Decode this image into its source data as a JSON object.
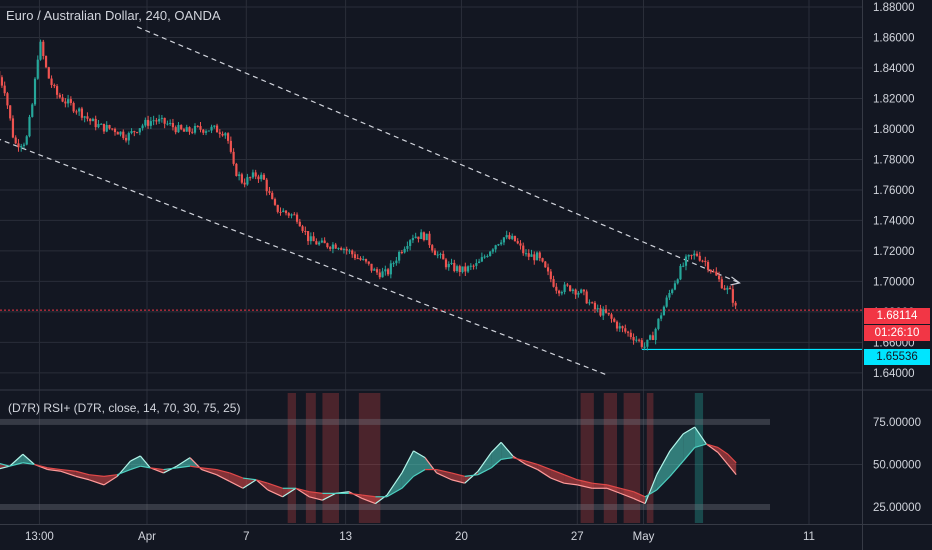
{
  "header": {
    "symbol_title": "Euro / Australian Dollar, 240, OANDA",
    "rsi_title": "(D7R) RSI+ (D7R, close, 14, 70, 30, 75, 25)"
  },
  "price_axis": {
    "labels": [
      "1.88000",
      "1.86000",
      "1.84000",
      "1.82000",
      "1.80000",
      "1.78000",
      "1.76000",
      "1.74000",
      "1.72000",
      "1.70000",
      "1.68000",
      "1.66000",
      "1.64000"
    ],
    "values": [
      1.88,
      1.86,
      1.84,
      1.82,
      1.8,
      1.78,
      1.76,
      1.74,
      1.72,
      1.7,
      1.68,
      1.66,
      1.64
    ]
  },
  "rsi_axis": {
    "labels": [
      "75.00000",
      "50.00000",
      "25.00000"
    ],
    "values": [
      75,
      50,
      25
    ]
  },
  "time_axis": {
    "labels": [
      "13:00",
      "Apr",
      "7",
      "13",
      "20",
      "27",
      "May",
      "11"
    ],
    "day_positions": [
      -6.5,
      0,
      6,
      12,
      19,
      26,
      30,
      40
    ]
  },
  "price_tags": {
    "last_price": "1.68114",
    "countdown": "01:26:10",
    "support": "1.65536",
    "last_color": "#f23645",
    "support_color": "#00e5ff"
  },
  "colors": {
    "background": "#131722",
    "up": "#26a69a",
    "down": "#ef5350",
    "rsi_bull": "#4dd0c1",
    "rsi_bear": "#e04848",
    "grid": "#2a2e39",
    "text": "#d1d4dc"
  },
  "chart_data": [
    {
      "type": "candlestick",
      "title": "Euro / Australian Dollar, 240, OANDA",
      "interval": "240",
      "ylim": [
        1.634,
        1.882
      ],
      "x_unit": "days since April 1",
      "xlim": [
        -9.1,
        42
      ],
      "path": [
        [
          -9.1,
          1.838
        ],
        [
          -8.6,
          1.826
        ],
        [
          -8,
          1.79
        ],
        [
          -7.3,
          1.792
        ],
        [
          -6.9,
          1.818
        ],
        [
          -6.5,
          1.858
        ],
        [
          -6.0,
          1.835
        ],
        [
          -5.5,
          1.823
        ],
        [
          -4.8,
          1.817
        ],
        [
          -4.1,
          1.812
        ],
        [
          -3.4,
          1.805
        ],
        [
          -2.7,
          1.801
        ],
        [
          -2.0,
          1.8
        ],
        [
          -1.2,
          1.795
        ],
        [
          -0.4,
          1.802
        ],
        [
          0.4,
          1.806
        ],
        [
          1.3,
          1.803
        ],
        [
          2.2,
          1.798
        ],
        [
          3.1,
          1.8
        ],
        [
          4.0,
          1.8
        ],
        [
          4.8,
          1.798
        ],
        [
          5.2,
          1.775
        ],
        [
          5.8,
          1.765
        ],
        [
          6.6,
          1.77
        ],
        [
          7.0,
          1.768
        ],
        [
          7.7,
          1.748
        ],
        [
          8.4,
          1.745
        ],
        [
          9.1,
          1.742
        ],
        [
          9.8,
          1.727
        ],
        [
          10.6,
          1.724
        ],
        [
          11.6,
          1.724
        ],
        [
          12.4,
          1.718
        ],
        [
          13.2,
          1.712
        ],
        [
          13.8,
          1.706
        ],
        [
          14.5,
          1.705
        ],
        [
          15.3,
          1.72
        ],
        [
          16.0,
          1.73
        ],
        [
          16.8,
          1.73
        ],
        [
          17.5,
          1.718
        ],
        [
          18.2,
          1.71
        ],
        [
          19.1,
          1.707
        ],
        [
          20.0,
          1.711
        ],
        [
          20.8,
          1.722
        ],
        [
          21.5,
          1.729
        ],
        [
          22.2,
          1.727
        ],
        [
          22.9,
          1.717
        ],
        [
          23.6,
          1.716
        ],
        [
          24.2,
          1.705
        ],
        [
          24.8,
          1.695
        ],
        [
          25.6,
          1.696
        ],
        [
          26.3,
          1.692
        ],
        [
          27.0,
          1.682
        ],
        [
          27.8,
          1.678
        ],
        [
          28.6,
          1.669
        ],
        [
          29.5,
          1.663
        ],
        [
          30.1,
          1.657
        ],
        [
          30.6,
          1.665
        ],
        [
          31.1,
          1.68
        ],
        [
          31.6,
          1.693
        ],
        [
          32.1,
          1.705
        ],
        [
          32.6,
          1.714
        ],
        [
          33.2,
          1.718
        ],
        [
          33.8,
          1.712
        ],
        [
          34.4,
          1.703
        ],
        [
          34.9,
          1.696
        ],
        [
          35.3,
          1.692
        ],
        [
          35.6,
          1.681
        ]
      ],
      "channel_upper": {
        "x": [
          -0.6,
          35.8
        ],
        "y": [
          1.867,
          1.699
        ]
      },
      "channel_lower": {
        "x": [
          -9.1,
          27.7
        ],
        "y": [
          1.794,
          1.639
        ]
      },
      "horizontal_lines": [
        {
          "name": "last-price",
          "y": 1.68114,
          "style": "dotted",
          "color": "#f23645"
        },
        {
          "name": "support",
          "y": 1.65536,
          "x_start": 29.9,
          "color": "#00e5ff"
        }
      ]
    },
    {
      "type": "area",
      "title": "(D7R) RSI+ (D7R, close, 14, 70, 30, 75, 25)",
      "ylim": [
        15,
        92
      ],
      "levels": [
        75,
        50,
        25
      ],
      "series": [
        {
          "points": [
            [
              -9.1,
              47
            ],
            [
              -8.3,
              49
            ],
            [
              -7.5,
              56
            ],
            [
              -6.8,
              50
            ],
            [
              -6.0,
              47
            ],
            [
              -5.2,
              46
            ],
            [
              -4.3,
              43
            ],
            [
              -3.5,
              41
            ],
            [
              -2.6,
              38
            ],
            [
              -1.8,
              43
            ],
            [
              -1.0,
              52
            ],
            [
              -0.4,
              55
            ],
            [
              0.2,
              48
            ],
            [
              1.0,
              45
            ],
            [
              1.8,
              49
            ],
            [
              2.6,
              54
            ],
            [
              3.3,
              47
            ],
            [
              4.2,
              44
            ],
            [
              5.0,
              40
            ],
            [
              5.8,
              36
            ],
            [
              6.6,
              41
            ],
            [
              7.3,
              35
            ],
            [
              8.2,
              31
            ],
            [
              9.0,
              36
            ],
            [
              9.8,
              31
            ],
            [
              10.6,
              29
            ],
            [
              11.4,
              33
            ],
            [
              12.2,
              34
            ],
            [
              13.0,
              30
            ],
            [
              13.8,
              27
            ],
            [
              14.5,
              32
            ],
            [
              15.4,
              45
            ],
            [
              16.1,
              58
            ],
            [
              16.8,
              54
            ],
            [
              17.5,
              45
            ],
            [
              18.4,
              41
            ],
            [
              19.2,
              39
            ],
            [
              20.0,
              46
            ],
            [
              20.8,
              57
            ],
            [
              21.4,
              63
            ],
            [
              22.1,
              55
            ],
            [
              22.9,
              50
            ],
            [
              23.6,
              47
            ],
            [
              24.4,
              42
            ],
            [
              25.2,
              39
            ],
            [
              26.0,
              38
            ],
            [
              26.9,
              36
            ],
            [
              27.8,
              36
            ],
            [
              28.6,
              33
            ],
            [
              29.4,
              30
            ],
            [
              30.1,
              27
            ],
            [
              30.8,
              44
            ],
            [
              31.6,
              58
            ],
            [
              32.4,
              68
            ],
            [
              33.1,
              72
            ],
            [
              33.8,
              62
            ],
            [
              34.5,
              57
            ],
            [
              35.1,
              50
            ],
            [
              35.6,
              44
            ]
          ]
        },
        {
          "points": [
            [
              -9.1,
              51
            ],
            [
              -8.3,
              49
            ],
            [
              -7.5,
              51
            ],
            [
              -6.8,
              50
            ],
            [
              -6.0,
              48
            ],
            [
              -5.2,
              47
            ],
            [
              -4.3,
              46
            ],
            [
              -3.5,
              44
            ],
            [
              -2.6,
              43
            ],
            [
              -1.8,
              44
            ],
            [
              -1.0,
              47
            ],
            [
              -0.4,
              49
            ],
            [
              0.2,
              48
            ],
            [
              1.0,
              47
            ],
            [
              1.8,
              48
            ],
            [
              2.6,
              49
            ],
            [
              3.3,
              48
            ],
            [
              4.2,
              47
            ],
            [
              5.0,
              45
            ],
            [
              5.8,
              42
            ],
            [
              6.6,
              41
            ],
            [
              7.3,
              39
            ],
            [
              8.2,
              36
            ],
            [
              9.0,
              36
            ],
            [
              9.8,
              34
            ],
            [
              10.6,
              33
            ],
            [
              11.4,
              33
            ],
            [
              12.2,
              33
            ],
            [
              13.0,
              32
            ],
            [
              13.8,
              31
            ],
            [
              14.5,
              31
            ],
            [
              15.4,
              36
            ],
            [
              16.1,
              43
            ],
            [
              16.8,
              47
            ],
            [
              17.5,
              47
            ],
            [
              18.4,
              45
            ],
            [
              19.2,
              43
            ],
            [
              20.0,
              44
            ],
            [
              20.8,
              48
            ],
            [
              21.4,
              53
            ],
            [
              22.1,
              54
            ],
            [
              22.9,
              52
            ],
            [
              23.6,
              50
            ],
            [
              24.4,
              47
            ],
            [
              25.2,
              44
            ],
            [
              26.0,
              41
            ],
            [
              26.9,
              39
            ],
            [
              27.8,
              38
            ],
            [
              28.6,
              36
            ],
            [
              29.4,
              34
            ],
            [
              30.1,
              31
            ],
            [
              30.8,
              35
            ],
            [
              31.6,
              43
            ],
            [
              32.4,
              52
            ],
            [
              33.1,
              60
            ],
            [
              33.8,
              62
            ],
            [
              34.5,
              60
            ],
            [
              35.1,
              56
            ],
            [
              35.6,
              51
            ]
          ]
        }
      ]
    }
  ]
}
